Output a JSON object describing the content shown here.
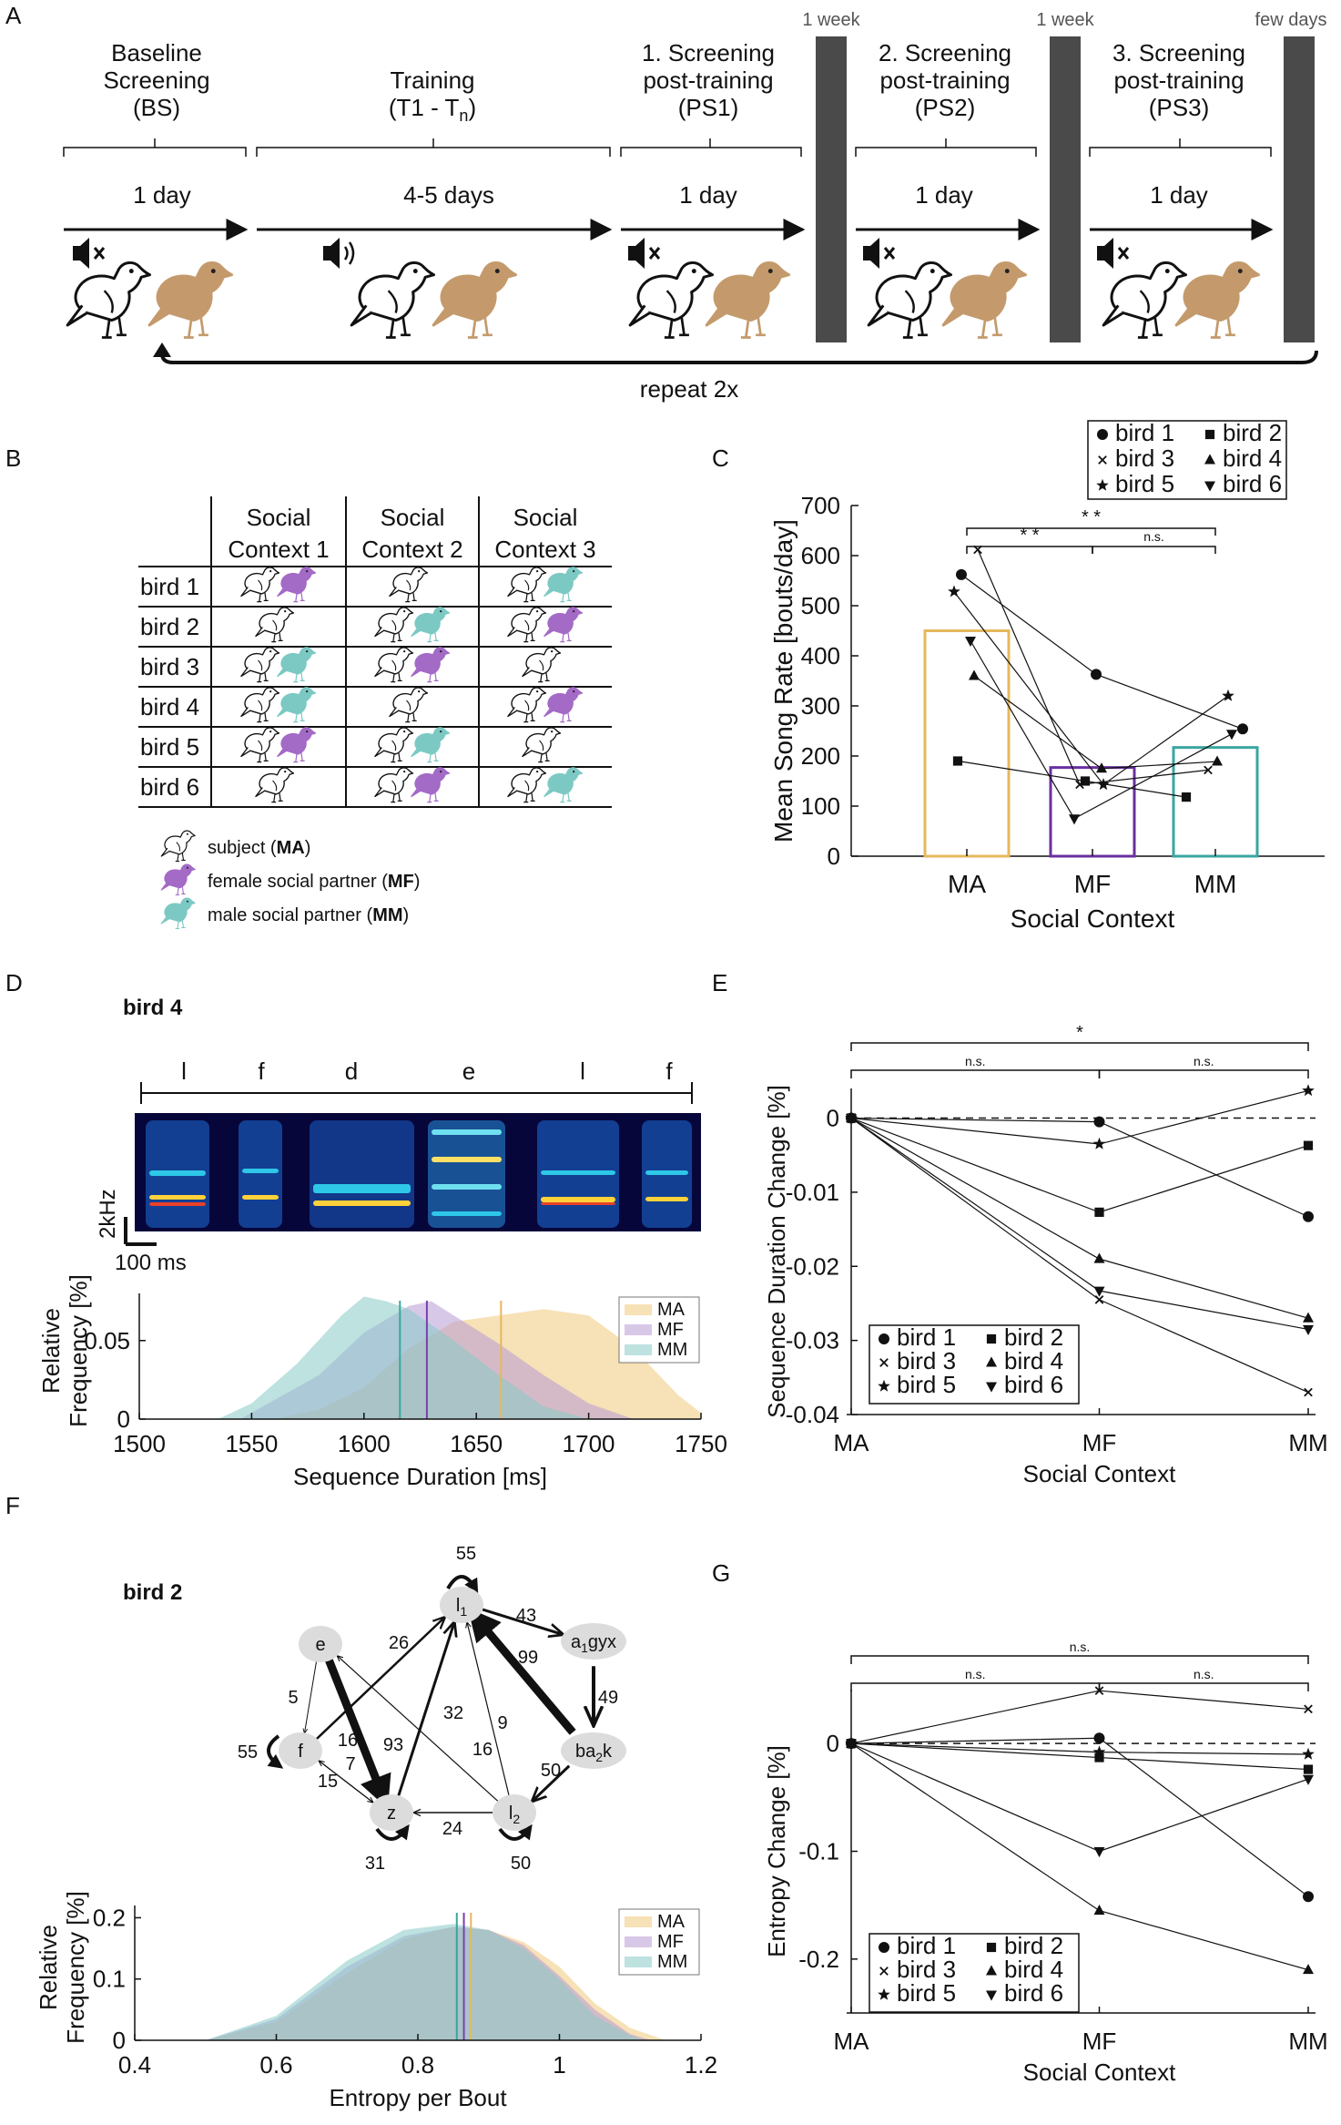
{
  "panel_labels": {
    "a": "A",
    "b": "B",
    "c": "C",
    "d": "D",
    "e": "E",
    "f": "F",
    "g": "G"
  },
  "panel_a": {
    "phases": [
      {
        "name_line1": "Baseline",
        "name_line2": "Screening",
        "name_line3": "(BS)",
        "duration": "1 day",
        "sound": "muted"
      },
      {
        "name_line1": "Training",
        "name_line2": "(T1 - T",
        "name_sub": "n",
        "name_close": ")",
        "duration": "4-5 days",
        "sound": "on"
      },
      {
        "name_line1": "1. Screening",
        "name_line2": "post-training",
        "name_line3": "(PS1)",
        "duration": "1 day",
        "sound": "muted"
      },
      {
        "name_line1": "2. Screening",
        "name_line2": "post-training",
        "name_line3": "(PS2)",
        "duration": "1 day",
        "sound": "muted"
      },
      {
        "name_line1": "3. Screening",
        "name_line2": "post-training",
        "name_line3": "(PS3)",
        "duration": "1 day",
        "sound": "muted"
      }
    ],
    "gaps": [
      "1 week",
      "1 week",
      "few days"
    ],
    "repeat_label": "repeat 2x",
    "colors": {
      "subject": "#ffffff",
      "partner": "#c49a6c",
      "gap_bar": "#4a4a4a"
    }
  },
  "panel_b": {
    "header": [
      [
        "Social",
        "Context 1"
      ],
      [
        "Social",
        "Context 2"
      ],
      [
        "Social",
        "Context 3"
      ]
    ],
    "rows": [
      {
        "bird": "bird 1",
        "contexts": [
          "female",
          "alone",
          "male"
        ]
      },
      {
        "bird": "bird 2",
        "contexts": [
          "alone",
          "male",
          "female"
        ]
      },
      {
        "bird": "bird 3",
        "contexts": [
          "male",
          "female",
          "alone"
        ]
      },
      {
        "bird": "bird 4",
        "contexts": [
          "male",
          "alone",
          "female"
        ]
      },
      {
        "bird": "bird 5",
        "contexts": [
          "female",
          "male",
          "alone"
        ]
      },
      {
        "bird": "bird 6",
        "contexts": [
          "alone",
          "female",
          "male"
        ]
      }
    ],
    "legend": [
      {
        "text": "subject (",
        "bold": "MA",
        "close": ")",
        "kind": "subject"
      },
      {
        "text": "female social partner (",
        "bold": "MF",
        "close": ")",
        "kind": "female"
      },
      {
        "text": "male social partner (",
        "bold": "MM",
        "close": ")",
        "kind": "male"
      }
    ],
    "colors": {
      "female": "#a36ac6",
      "male": "#7cc9c4",
      "subject": "#ffffff"
    }
  },
  "chart_data": [
    {
      "id": "C",
      "type": "bar",
      "categories": [
        "MA",
        "MF",
        "MM"
      ],
      "values": [
        450,
        177,
        217
      ],
      "bar_colors": [
        "#e6b85c",
        "#6a2fa0",
        "#3aa6a0"
      ],
      "ylabel": "Mean Song Rate [bouts/day]",
      "xlabel": "Social Context",
      "ylim": [
        0,
        700
      ],
      "yticks": [
        0,
        100,
        200,
        300,
        400,
        500,
        600,
        700
      ],
      "series": [
        {
          "name": "bird 1",
          "marker": "circle",
          "values": [
            562,
            363,
            254
          ]
        },
        {
          "name": "bird 2",
          "marker": "square",
          "values": [
            190,
            150,
            118
          ]
        },
        {
          "name": "bird 3",
          "marker": "x",
          "values": [
            612,
            143,
            172
          ]
        },
        {
          "name": "bird 4",
          "marker": "triangle-up",
          "values": [
            360,
            175,
            189
          ]
        },
        {
          "name": "bird 5",
          "marker": "star",
          "values": [
            528,
            143,
            320
          ]
        },
        {
          "name": "bird 6",
          "marker": "triangle-down",
          "values": [
            430,
            75,
            244
          ]
        }
      ],
      "significance": [
        {
          "from": "MA",
          "to": "MF",
          "label": "* *"
        },
        {
          "from": "MA",
          "to": "MM",
          "label": "* *"
        },
        {
          "from": "MF",
          "to": "MM",
          "label": "n.s."
        }
      ],
      "legend": {
        "entries": [
          "bird 1",
          "bird 2",
          "bird 3",
          "bird 4",
          "bird 5",
          "bird 6"
        ],
        "position": "top-right"
      }
    },
    {
      "id": "D-hist",
      "type": "area",
      "title": "bird 4",
      "xlabel": "Sequence Duration [ms]",
      "ylabel_line1": "Relative",
      "ylabel_line2": "Frequency [%]",
      "xlim": [
        1500,
        1750
      ],
      "xticks": [
        1500,
        1550,
        1600,
        1650,
        1700,
        1750
      ],
      "ylim": [
        0,
        0.08
      ],
      "yticks": [
        0,
        0.05
      ],
      "ytick_labels": [
        "0",
        "0.05"
      ],
      "series": [
        {
          "name": "MA",
          "color": "#f0c97a",
          "median": 1661,
          "x": [
            1560,
            1580,
            1600,
            1620,
            1640,
            1660,
            1680,
            1700,
            1720,
            1740,
            1750
          ],
          "y": [
            0.0,
            0.006,
            0.02,
            0.045,
            0.062,
            0.066,
            0.07,
            0.066,
            0.045,
            0.015,
            0.004
          ]
        },
        {
          "name": "MF",
          "color": "#b89ad6",
          "median": 1628,
          "x": [
            1545,
            1560,
            1580,
            1600,
            1620,
            1630,
            1640,
            1660,
            1680,
            1700,
            1720
          ],
          "y": [
            0.0,
            0.012,
            0.028,
            0.055,
            0.072,
            0.075,
            0.066,
            0.048,
            0.028,
            0.01,
            0.0
          ]
        },
        {
          "name": "MM",
          "color": "#86cbc6",
          "median": 1616,
          "x": [
            1535,
            1550,
            1570,
            1590,
            1600,
            1610,
            1620,
            1640,
            1660,
            1680,
            1700
          ],
          "y": [
            0.0,
            0.01,
            0.035,
            0.066,
            0.078,
            0.075,
            0.07,
            0.05,
            0.028,
            0.008,
            0.0
          ]
        }
      ],
      "legend": {
        "entries": [
          "MA",
          "MF",
          "MM"
        ],
        "position": "top-right"
      }
    },
    {
      "id": "E",
      "type": "line",
      "categories": [
        "MA",
        "MF",
        "MM"
      ],
      "xlabel": "Social Context",
      "ylabel": "Sequence Duration Change [%]",
      "ylim": [
        -0.04,
        0.004
      ],
      "yticks": [
        0,
        -0.01,
        -0.02,
        -0.03,
        -0.04
      ],
      "ytick_labels": [
        "0",
        "-0.01",
        "-0.02",
        "-0.03",
        "-0.04"
      ],
      "series": [
        {
          "name": "bird 1",
          "marker": "circle",
          "values": [
            0,
            -0.0005,
            -0.0133
          ]
        },
        {
          "name": "bird 2",
          "marker": "square",
          "values": [
            0,
            -0.0127,
            -0.0037
          ]
        },
        {
          "name": "bird 3",
          "marker": "x",
          "values": [
            0,
            -0.0245,
            -0.037
          ]
        },
        {
          "name": "bird 4",
          "marker": "triangle-up",
          "values": [
            0,
            -0.019,
            -0.027
          ]
        },
        {
          "name": "bird 5",
          "marker": "star",
          "values": [
            0,
            -0.0035,
            0.0037
          ]
        },
        {
          "name": "bird 6",
          "marker": "triangle-down",
          "values": [
            0,
            -0.0233,
            -0.0285
          ]
        }
      ],
      "significance": [
        {
          "from": "MA",
          "to": "MM",
          "label": "*"
        },
        {
          "from": "MA",
          "to": "MF",
          "label": "n.s."
        },
        {
          "from": "MF",
          "to": "MM",
          "label": "n.s."
        }
      ],
      "legend": {
        "entries": [
          "bird 1",
          "bird 2",
          "bird 3",
          "bird 4",
          "bird 5",
          "bird 6"
        ],
        "position": "bottom-left"
      }
    },
    {
      "id": "F-hist",
      "type": "area",
      "title": "bird 2",
      "xlabel": "Entropy per Bout",
      "ylabel_line1": "Relative",
      "ylabel_line2": "Frequency [%]",
      "xlim": [
        0.4,
        1.2
      ],
      "xticks": [
        0.4,
        0.6,
        0.8,
        1,
        1.2
      ],
      "ytick_labels": [
        "0",
        "0.1",
        "0.2"
      ],
      "ylim": [
        0,
        0.22
      ],
      "yticks": [
        0,
        0.1,
        0.2
      ],
      "series": [
        {
          "name": "MA",
          "color": "#f0c97a",
          "median": 0.875,
          "x": [
            0.5,
            0.6,
            0.7,
            0.78,
            0.85,
            0.9,
            0.95,
            1.0,
            1.05,
            1.1,
            1.15
          ],
          "y": [
            0.0,
            0.03,
            0.11,
            0.165,
            0.185,
            0.18,
            0.16,
            0.12,
            0.06,
            0.02,
            0.0
          ]
        },
        {
          "name": "MF",
          "color": "#b89ad6",
          "median": 0.865,
          "x": [
            0.5,
            0.6,
            0.7,
            0.78,
            0.85,
            0.9,
            0.95,
            1.0,
            1.05,
            1.1,
            1.13
          ],
          "y": [
            0.0,
            0.035,
            0.12,
            0.17,
            0.185,
            0.18,
            0.155,
            0.105,
            0.05,
            0.01,
            0.0
          ]
        },
        {
          "name": "MM",
          "color": "#86cbc6",
          "median": 0.855,
          "x": [
            0.5,
            0.6,
            0.7,
            0.78,
            0.85,
            0.9,
            0.95,
            1.0,
            1.05,
            1.1,
            1.12
          ],
          "y": [
            0.0,
            0.04,
            0.13,
            0.18,
            0.19,
            0.18,
            0.15,
            0.1,
            0.04,
            0.008,
            0.0
          ]
        }
      ],
      "legend": {
        "entries": [
          "MA",
          "MF",
          "MM"
        ],
        "position": "top-right"
      }
    },
    {
      "id": "G",
      "type": "line",
      "categories": [
        "MA",
        "MF",
        "MM"
      ],
      "xlabel": "Social Context",
      "ylabel": "Entropy Change [%]",
      "ylim": [
        -0.25,
        0.05
      ],
      "yticks": [
        0,
        -0.1,
        -0.2
      ],
      "ytick_labels": [
        "0",
        "-0.1",
        "-0.2"
      ],
      "series": [
        {
          "name": "bird 1",
          "marker": "circle",
          "values": [
            0,
            0.005,
            -0.142
          ]
        },
        {
          "name": "bird 2",
          "marker": "square",
          "values": [
            0,
            -0.013,
            -0.024
          ]
        },
        {
          "name": "bird 3",
          "marker": "x",
          "values": [
            0,
            0.049,
            0.032
          ]
        },
        {
          "name": "bird 4",
          "marker": "triangle-up",
          "values": [
            0,
            -0.155,
            -0.21
          ]
        },
        {
          "name": "bird 5",
          "marker": "star",
          "values": [
            0,
            -0.008,
            -0.01
          ]
        },
        {
          "name": "bird 6",
          "marker": "triangle-down",
          "values": [
            0,
            -0.1,
            -0.033
          ]
        }
      ],
      "significance": [
        {
          "from": "MA",
          "to": "MM",
          "label": "n.s."
        },
        {
          "from": "MA",
          "to": "MF",
          "label": "n.s."
        },
        {
          "from": "MF",
          "to": "MM",
          "label": "n.s."
        }
      ],
      "legend": {
        "entries": [
          "bird 1",
          "bird 2",
          "bird 3",
          "bird 4",
          "bird 5",
          "bird 6"
        ],
        "position": "bottom-left"
      }
    }
  ],
  "panel_d_spectrogram": {
    "syllables": [
      "l",
      "f",
      "d",
      "e",
      "l",
      "f"
    ],
    "scale_freq": "2kHz",
    "scale_time": "100 ms"
  },
  "panel_f_graph": {
    "nodes": [
      {
        "id": "l1",
        "label": "l",
        "sub": "1"
      },
      {
        "id": "a1gyx",
        "label": "a",
        "sub": "1",
        "rest": "gyx"
      },
      {
        "id": "e",
        "label": "e"
      },
      {
        "id": "f",
        "label": "f"
      },
      {
        "id": "ba2k",
        "label": "ba",
        "sub": "2",
        "rest": "k"
      },
      {
        "id": "z",
        "label": "z"
      },
      {
        "id": "l2",
        "label": "l",
        "sub": "2"
      }
    ],
    "edge_labels": [
      "55",
      "43",
      "26",
      "99",
      "49",
      "5",
      "32",
      "16",
      "93",
      "9",
      "55",
      "16",
      "7",
      "15",
      "50",
      "24",
      "31",
      "50"
    ]
  }
}
